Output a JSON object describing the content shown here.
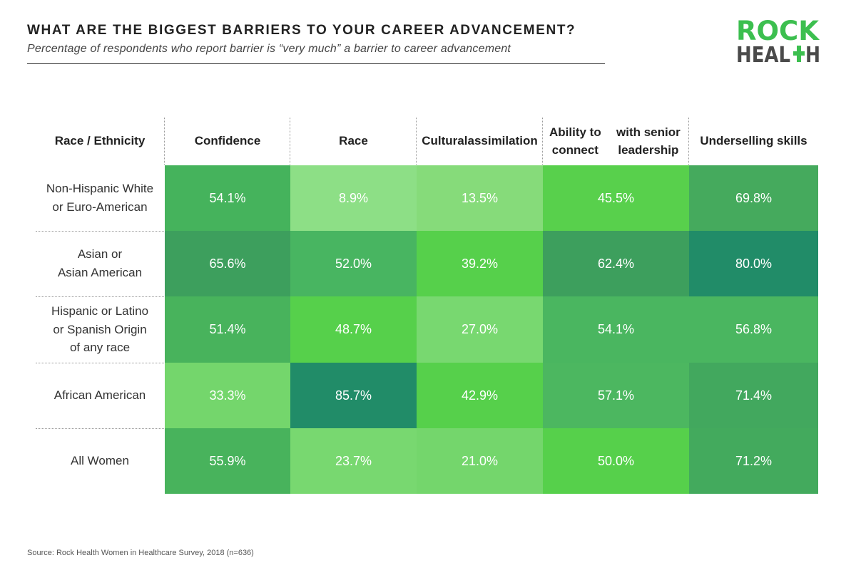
{
  "title": "WHAT ARE THE BIGGEST BARRIERS TO YOUR CAREER ADVANCEMENT?",
  "subtitle": "Percentage of respondents who report barrier is “very much” a barrier to career advancement",
  "logo": {
    "line1": "ROCK",
    "line2_left": "HEAL",
    "line2_right": "H",
    "colors": [
      "#3cbf4f",
      "#4a4a4a"
    ]
  },
  "source": "Source: Rock Health Women in Healthcare Survey, 2018 (n=636)",
  "chart_data": {
    "type": "heatmap",
    "row_header": "Race / Ethnicity",
    "columns": [
      "Confidence",
      "Race",
      "Cultural assimilation",
      "Ability to connect with senior leadership",
      "Underselling skills"
    ],
    "column_header_lines": [
      [
        "Confidence"
      ],
      [
        "Race"
      ],
      [
        "Cultural",
        "assimilation"
      ],
      [
        "Ability to connect",
        "with senior leadership"
      ],
      [
        "Underselling skills"
      ]
    ],
    "rows": [
      {
        "label": [
          "Non-Hispanic White",
          "or Euro-American"
        ],
        "values": [
          54.1,
          8.9,
          13.5,
          45.5,
          69.8
        ],
        "display": [
          "54.1%",
          "8.9%",
          "13.5%",
          "45.5%",
          "69.8%"
        ]
      },
      {
        "label": [
          "Asian or",
          "Asian American"
        ],
        "values": [
          65.6,
          52.0,
          39.2,
          62.4,
          80.0
        ],
        "display": [
          "65.6%",
          "52.0%",
          "39.2%",
          "62.4%",
          "80.0%"
        ]
      },
      {
        "label": [
          "Hispanic or Latino",
          "or Spanish Origin",
          "of any race"
        ],
        "values": [
          51.4,
          48.7,
          27.0,
          54.1,
          56.8
        ],
        "display": [
          "51.4%",
          "48.7%",
          "27.0%",
          "54.1%",
          "56.8%"
        ]
      },
      {
        "label": [
          "African American"
        ],
        "values": [
          33.3,
          85.7,
          42.9,
          57.1,
          71.4
        ],
        "display": [
          "33.3%",
          "85.7%",
          "42.9%",
          "57.1%",
          "71.4%"
        ]
      },
      {
        "label": [
          "All Women"
        ],
        "values": [
          55.9,
          23.7,
          21.0,
          50.0,
          71.2
        ],
        "display": [
          "55.9%",
          "23.7%",
          "21.0%",
          "50.0%",
          "71.2%"
        ]
      }
    ],
    "cell_colors": [
      [
        "#45b35c",
        "#8ddf86",
        "#86db7a",
        "#58d04c",
        "#45aa5d"
      ],
      [
        "#3d9f5d",
        "#48b561",
        "#56d04b",
        "#3d9f5d",
        "#218c68"
      ],
      [
        "#48b35c",
        "#56d04b",
        "#78d870",
        "#4ab660",
        "#4ab660"
      ],
      [
        "#74d66c",
        "#218c68",
        "#56d04b",
        "#4cb760",
        "#42a85e"
      ],
      [
        "#48b35c",
        "#78d870",
        "#74d66c",
        "#56d04b",
        "#43aa5d"
      ]
    ],
    "color_scale": [
      "#8ddf86",
      "#56d04b",
      "#45aa5d",
      "#218c68"
    ]
  }
}
